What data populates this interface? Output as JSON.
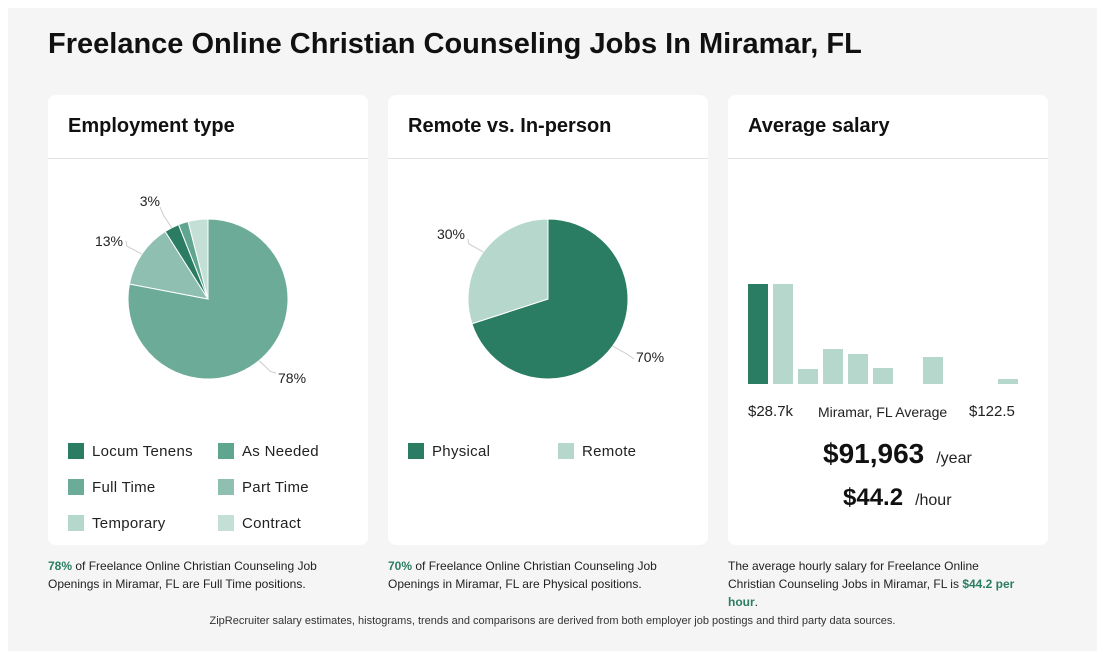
{
  "page": {
    "title": "Freelance Online Christian Counseling Jobs In Miramar, FL",
    "footer": "ZipRecruiter salary estimates, histograms, trends and comparisons are derived from both employer job postings and third party data sources."
  },
  "colors": {
    "dark_green": "#2a7d63",
    "medium_green": "#5fa58f",
    "soft_green": "#6cab97",
    "pale_green": "#8fbfb0",
    "light_green": "#b6d7cc",
    "lighter_green": "#c3dfd6",
    "accent_text": "#2a7d63"
  },
  "employment": {
    "title": "Employment type",
    "chart_data": {
      "type": "pie",
      "slices": [
        {
          "label": "Full Time",
          "value": 78,
          "color": "#6cab97"
        },
        {
          "label": "Part Time",
          "value": 13,
          "color": "#8fbfb0"
        },
        {
          "label": "Locum Tenens",
          "value": 3,
          "color": "#2a7d63"
        },
        {
          "label": "As Needed",
          "value": 2,
          "color": "#5fa58f"
        },
        {
          "label": "Temporary",
          "value": 0,
          "color": "#b6d7cc"
        },
        {
          "label": "Contract",
          "value": 4,
          "color": "#c3dfd6"
        }
      ],
      "data_labels": [
        {
          "text": "78%",
          "slice": "Full Time"
        },
        {
          "text": "13%",
          "slice": "Part Time"
        },
        {
          "text": "3%",
          "slice": "Locum Tenens"
        }
      ]
    },
    "legend": [
      {
        "label": "Locum Tenens",
        "color": "#2a7d63"
      },
      {
        "label": "As Needed",
        "color": "#5fa58f"
      },
      {
        "label": "Full Time",
        "color": "#6cab97"
      },
      {
        "label": "Part Time",
        "color": "#8fbfb0"
      },
      {
        "label": "Temporary",
        "color": "#b6d7cc"
      },
      {
        "label": "Contract",
        "color": "#c3dfd6"
      }
    ],
    "caption": {
      "highlight": "78%",
      "text": " of Freelance Online Christian Counseling Job Openings in Miramar, FL are Full Time positions."
    }
  },
  "remote": {
    "title": "Remote vs. In-person",
    "chart_data": {
      "type": "pie",
      "slices": [
        {
          "label": "Physical",
          "value": 70,
          "color": "#2a7d63"
        },
        {
          "label": "Remote",
          "value": 30,
          "color": "#b6d7cc"
        }
      ],
      "data_labels": [
        {
          "text": "70%",
          "slice": "Physical"
        },
        {
          "text": "30%",
          "slice": "Remote"
        }
      ]
    },
    "legend": [
      {
        "label": "Physical",
        "color": "#2a7d63"
      },
      {
        "label": "Remote",
        "color": "#b6d7cc"
      }
    ],
    "caption": {
      "highlight": "70%",
      "text": " of Freelance Online Christian Counseling Job Openings in Miramar, FL are Physical positions."
    }
  },
  "salary": {
    "title": "Average salary",
    "chart_data": {
      "type": "bar",
      "values": [
        100,
        100,
        15,
        35,
        30,
        16,
        0,
        27,
        0,
        0,
        5
      ],
      "highlight_index": 0,
      "highlight_color": "#2a7d63",
      "bar_color": "#b6d7cc",
      "min_label": "$28.7k",
      "mid_label": "Miramar, FL Average",
      "max_label": "$122.5"
    },
    "yearly": "$91,963",
    "yearly_unit": "/year",
    "hourly": "$44.2",
    "hourly_unit": "/hour",
    "caption": {
      "text": "The average hourly salary for Freelance Online Christian Counseling Jobs in Miramar, FL is ",
      "highlight": "$44.2 per hour",
      "end": "."
    }
  }
}
